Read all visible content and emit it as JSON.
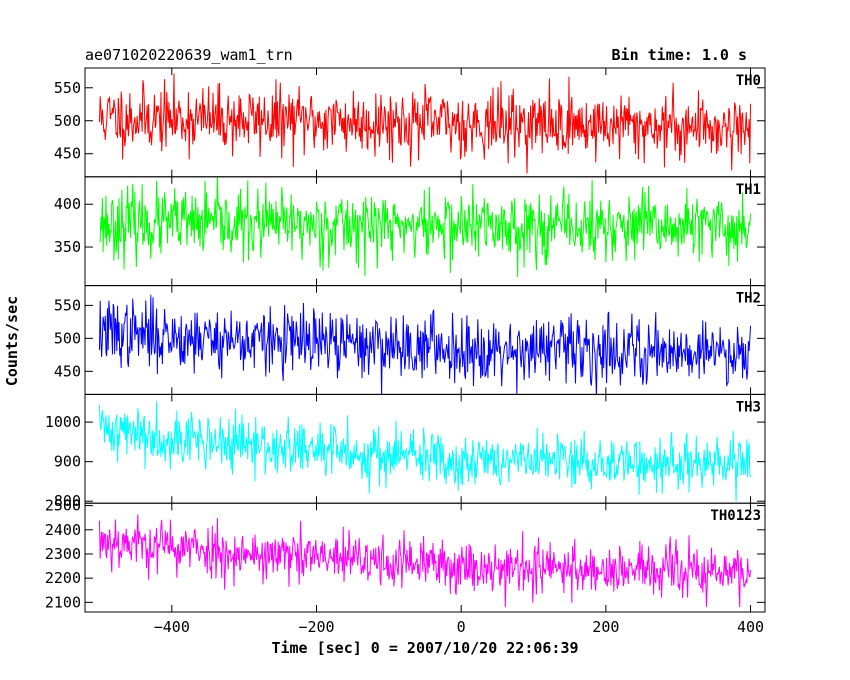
{
  "chart_data": {
    "type": "line",
    "title": "ae071020220639_wam1_trn",
    "bin_time": "Bin time: 1.0 s",
    "xlabel": "Time [sec] 0 = 2007/10/20 22:06:39",
    "ylabel": "Counts/sec",
    "xlim": [
      -520,
      420
    ],
    "x_ticks": [
      -400,
      -200,
      0,
      200,
      400
    ],
    "x_tick_labels": [
      "−400",
      "−200",
      "0",
      "200",
      "400"
    ],
    "x_start": -500,
    "x_end": 400,
    "bin": 1.0,
    "panels": [
      {
        "name": "TH0",
        "color": "#ff0000",
        "ylim": [
          415,
          580
        ],
        "ticks": [
          450,
          500,
          550
        ],
        "tick_labels": [
          "450",
          "500",
          "550"
        ],
        "trend": [
          [
            -500,
            505
          ],
          [
            400,
            490
          ]
        ],
        "noise": 25,
        "seed": 11
      },
      {
        "name": "TH1",
        "color": "#00ff00",
        "ylim": [
          305,
          432
        ],
        "ticks": [
          350,
          400
        ],
        "tick_labels": [
          "350",
          "400"
        ],
        "trend": [
          [
            -500,
            378
          ],
          [
            400,
            372
          ]
        ],
        "noise": 20,
        "seed": 23
      },
      {
        "name": "TH2",
        "color": "#0000ff",
        "ylim": [
          415,
          580
        ],
        "ticks": [
          450,
          500,
          550
        ],
        "tick_labels": [
          "450",
          "500",
          "550"
        ],
        "trend": [
          [
            -500,
            510
          ],
          [
            -300,
            497
          ],
          [
            0,
            485
          ],
          [
            400,
            480
          ]
        ],
        "noise": 25,
        "seed": 37
      },
      {
        "name": "TH3",
        "color": "#00ffff",
        "ylim": [
          795,
          1070
        ],
        "ticks": [
          800,
          900,
          1000
        ],
        "tick_labels": [
          "800",
          "900",
          "1000"
        ],
        "trend": [
          [
            -500,
            985
          ],
          [
            -300,
            940
          ],
          [
            0,
            905
          ],
          [
            400,
            890
          ]
        ],
        "noise": 35,
        "seed": 41
      },
      {
        "name": "TH0123",
        "color": "#ff00ff",
        "ylim": [
          2060,
          2510
        ],
        "ticks": [
          2100,
          2200,
          2300,
          2400,
          2500
        ],
        "tick_labels": [
          "2100",
          "2200",
          "2300",
          "2400",
          "2500"
        ],
        "trend": [
          [
            -500,
            2360
          ],
          [
            -300,
            2300
          ],
          [
            0,
            2250
          ],
          [
            400,
            2220
          ]
        ],
        "noise": 55,
        "seed": 53
      }
    ]
  }
}
